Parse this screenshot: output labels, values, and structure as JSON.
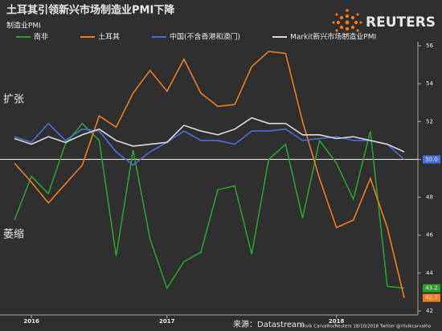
{
  "chart_data": {
    "type": "line",
    "title": "土耳其引领新兴市场制造业PMI下降",
    "subtitle": "制造业PMI",
    "annotations": [
      "扩张",
      "萎缩"
    ],
    "source": "来源：Datastream",
    "credit": "Ritvik Carvalho/Reuters 18/10/2018 Twitter @ritvikcarvalho",
    "logo": "REUTERS",
    "categories": [
      null,
      "2016",
      null,
      null,
      null,
      null,
      null,
      null,
      null,
      "2017",
      null,
      null,
      null,
      null,
      null,
      null,
      null,
      null,
      null,
      "2018",
      null,
      null,
      null,
      null
    ],
    "series": [
      {
        "name": "南非",
        "color": "#2ca02c",
        "values": [
          46.8,
          49.1,
          48.2,
          50.8,
          51.9,
          51.0,
          44.9,
          50.5,
          45.8,
          43.2,
          44.6,
          45.1,
          48.4,
          48.6,
          45.0,
          50.0,
          50.8,
          46.9,
          51.0,
          49.8,
          47.9,
          51.5,
          43.3,
          43.2
        ]
      },
      {
        "name": "土耳其",
        "color": "#f07c1c",
        "values": [
          49.8,
          48.8,
          47.7,
          48.7,
          49.7,
          52.3,
          51.7,
          53.5,
          54.7,
          53.6,
          55.3,
          53.5,
          52.8,
          52.9,
          54.9,
          55.7,
          55.6,
          52.0,
          49.0,
          46.4,
          46.8,
          49.0,
          46.4,
          42.7
        ]
      },
      {
        "name": "中国(不含香港和澳门)",
        "color": "#4a6ee0",
        "values": [
          51.2,
          50.9,
          51.9,
          51.0,
          51.6,
          51.5,
          50.4,
          49.7,
          50.4,
          50.9,
          51.5,
          51.0,
          51.0,
          50.8,
          51.5,
          51.5,
          51.6,
          51.0,
          51.1,
          51.2,
          51.0,
          51.0,
          50.8,
          50.0
        ]
      },
      {
        "name": "Markit新兴市场制造业PMI",
        "color": "#d9d9d9",
        "values": [
          51.1,
          50.8,
          51.2,
          50.9,
          51.3,
          51.6,
          51.0,
          50.7,
          50.8,
          50.9,
          51.8,
          51.5,
          51.3,
          51.6,
          52.2,
          51.9,
          51.9,
          51.3,
          51.3,
          51.1,
          51.2,
          51.0,
          50.8,
          50.4
        ]
      }
    ],
    "ylim": [
      42,
      56
    ],
    "yticks": [
      42,
      44,
      46,
      48,
      50,
      52,
      54,
      56
    ],
    "reference_line": {
      "value": 50,
      "label": "50.0",
      "color": "#ffffff"
    },
    "end_labels": [
      {
        "value": 43.2,
        "label": "43.2",
        "color": "#2ca02c"
      },
      {
        "value": 42.7,
        "label": "42.7",
        "color": "#f07c1c"
      }
    ]
  }
}
